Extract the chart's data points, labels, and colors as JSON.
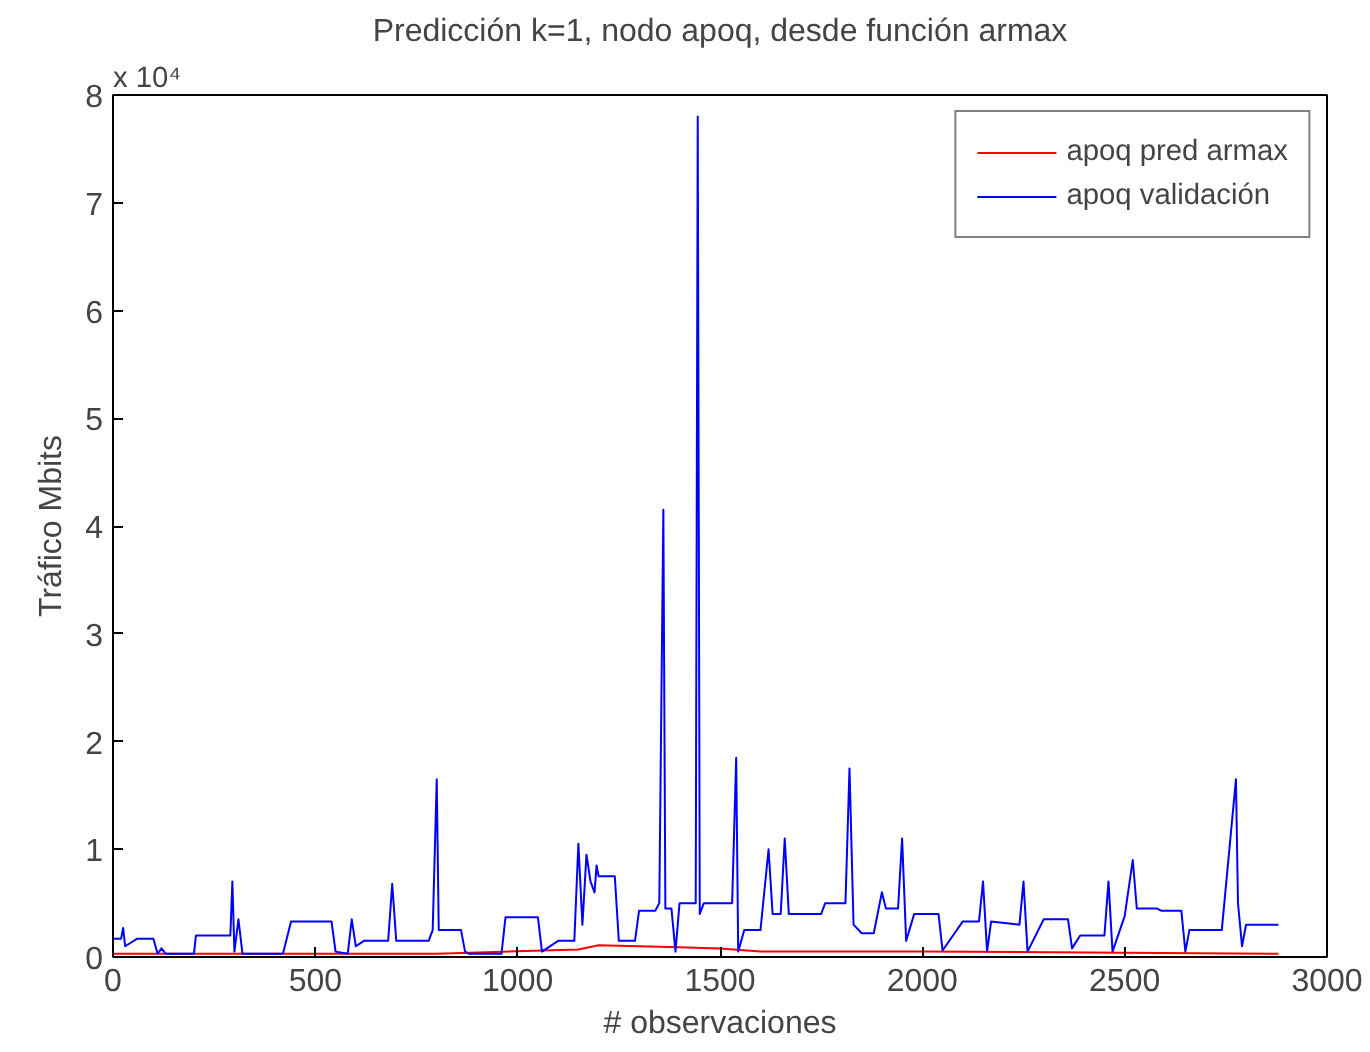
{
  "chart_data": {
    "type": "line",
    "title": "Predicción k=1, nodo apoq, desde función armax",
    "xlabel": "# observaciones",
    "ylabel": "Tráfico Mbits",
    "annotations": [
      "x 10⁴"
    ],
    "xlim": [
      0,
      3000
    ],
    "xticks": [
      0,
      500,
      1000,
      1500,
      2000,
      2500,
      3000
    ],
    "ylim": [
      0,
      8
    ],
    "yticks": [
      0,
      1,
      2,
      3,
      4,
      5,
      6,
      7,
      8
    ],
    "grid": false,
    "legend": "top right",
    "line_style": "solid",
    "marker": "none",
    "series": [
      {
        "name": "apoq pred armax",
        "color": "#ff0000",
        "x": [
          0,
          800,
          1150,
          1200,
          1400,
          1500,
          1600,
          2000,
          2500,
          2880
        ],
        "values": [
          0.03,
          0.03,
          0.07,
          0.11,
          0.09,
          0.08,
          0.05,
          0.05,
          0.04,
          0.03
        ]
      },
      {
        "name": "apoq validación",
        "color": "#0000ff",
        "x": [
          0,
          20,
          25,
          30,
          60,
          100,
          110,
          120,
          130,
          200,
          205,
          230,
          290,
          295,
          300,
          310,
          320,
          420,
          440,
          460,
          540,
          550,
          580,
          590,
          600,
          620,
          680,
          690,
          700,
          780,
          790,
          800,
          805,
          860,
          870,
          880,
          960,
          970,
          1000,
          1050,
          1060,
          1100,
          1140,
          1150,
          1160,
          1170,
          1180,
          1190,
          1195,
          1200,
          1240,
          1250,
          1290,
          1300,
          1340,
          1350,
          1360,
          1365,
          1380,
          1390,
          1400,
          1440,
          1445,
          1450,
          1460,
          1530,
          1540,
          1545,
          1560,
          1600,
          1620,
          1630,
          1650,
          1660,
          1670,
          1750,
          1760,
          1810,
          1820,
          1830,
          1850,
          1880,
          1900,
          1910,
          1940,
          1950,
          1960,
          1980,
          2040,
          2050,
          2100,
          2140,
          2150,
          2160,
          2170,
          2240,
          2250,
          2260,
          2300,
          2360,
          2370,
          2390,
          2450,
          2460,
          2470,
          2500,
          2520,
          2530,
          2580,
          2590,
          2640,
          2650,
          2660,
          2740,
          2775,
          2780,
          2790,
          2800,
          2880
        ],
        "values": [
          0.17,
          0.17,
          0.27,
          0.1,
          0.17,
          0.17,
          0.03,
          0.08,
          0.03,
          0.03,
          0.2,
          0.2,
          0.2,
          0.7,
          0.05,
          0.35,
          0.03,
          0.03,
          0.33,
          0.33,
          0.33,
          0.05,
          0.03,
          0.35,
          0.1,
          0.15,
          0.15,
          0.68,
          0.15,
          0.15,
          0.25,
          1.65,
          0.25,
          0.25,
          0.05,
          0.03,
          0.03,
          0.37,
          0.37,
          0.37,
          0.05,
          0.15,
          0.15,
          1.05,
          0.3,
          0.95,
          0.7,
          0.6,
          0.85,
          0.75,
          0.75,
          0.15,
          0.15,
          0.43,
          0.43,
          0.5,
          4.15,
          0.45,
          0.45,
          0.05,
          0.5,
          0.5,
          7.8,
          0.4,
          0.5,
          0.5,
          1.85,
          0.05,
          0.25,
          0.25,
          1.0,
          0.4,
          0.4,
          1.1,
          0.4,
          0.4,
          0.5,
          0.5,
          1.75,
          0.3,
          0.22,
          0.22,
          0.6,
          0.45,
          0.45,
          1.1,
          0.15,
          0.4,
          0.4,
          0.06,
          0.33,
          0.33,
          0.7,
          0.05,
          0.33,
          0.3,
          0.7,
          0.05,
          0.35,
          0.35,
          0.08,
          0.2,
          0.2,
          0.7,
          0.05,
          0.38,
          0.9,
          0.45,
          0.45,
          0.43,
          0.43,
          0.05,
          0.25,
          0.25,
          1.65,
          0.5,
          0.1,
          0.3,
          0.3
        ]
      }
    ]
  }
}
